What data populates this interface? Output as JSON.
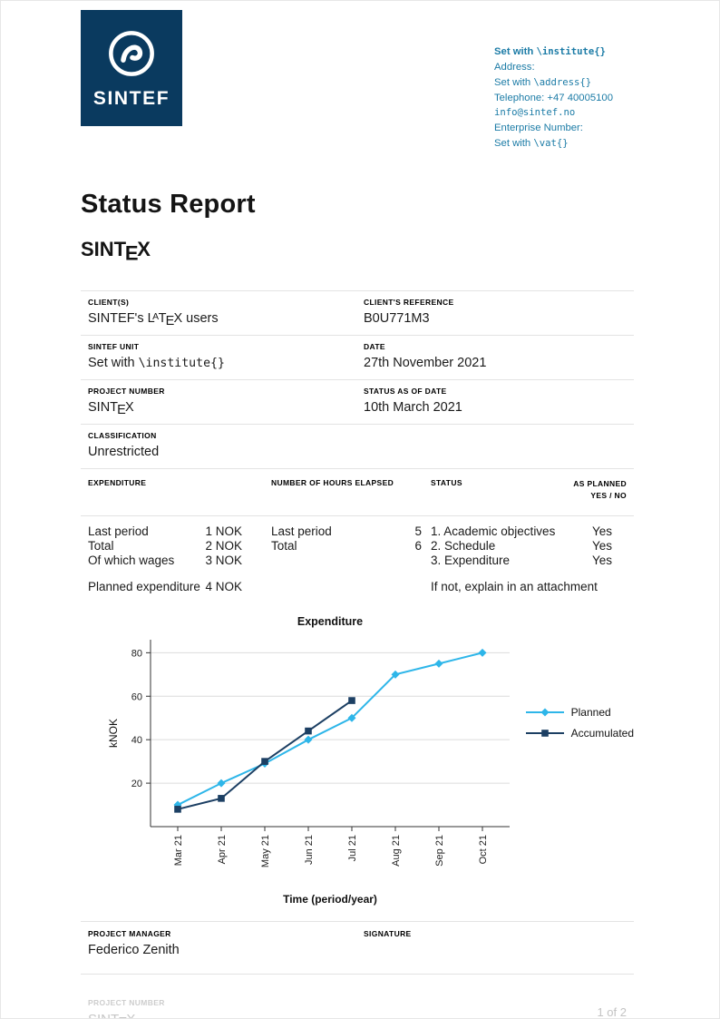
{
  "header": {
    "logo_text": "SINTEF",
    "contact": {
      "institute_prefix": "Set with ",
      "institute_code": "\\institute{}",
      "address_label": "Address:",
      "address_prefix": "Set with ",
      "address_code": "\\address{}",
      "telephone": "Telephone: +47 40005100",
      "email": "info@sintef.no",
      "enterprise_label": "Enterprise Number:",
      "vat_prefix": "Set with ",
      "vat_code": "\\vat{}"
    }
  },
  "title": "Status Report",
  "brand": {
    "pre": "SINT",
    "e": "E",
    "x": "X"
  },
  "latex_client": {
    "pre": "SINTEF's L",
    "a": "A",
    "t": "T",
    "e": "E",
    "x": "X",
    "post": " users"
  },
  "info": {
    "rows": [
      {
        "l_label": "CLIENT(S)",
        "r_label": "CLIENT'S REFERENCE",
        "r_value": "B0U771M3"
      },
      {
        "l_label": "SINTEF UNIT",
        "l_prefix": "Set with ",
        "l_code": "\\institute{}",
        "r_label": "DATE",
        "r_value": "27th November 2021"
      },
      {
        "l_label": "PROJECT NUMBER",
        "r_label": "STATUS AS OF DATE",
        "r_value": "10th March 2021"
      },
      {
        "l_label": "CLASSIFICATION",
        "l_value": "Unrestricted"
      }
    ]
  },
  "expenditure": {
    "headers": {
      "expenditure": "EXPENDITURE",
      "hours": "NUMBER OF HOURS ELAPSED",
      "status": "STATUS",
      "planned1": "AS PLANNED",
      "planned2": "YES / NO"
    },
    "rows": [
      {
        "exp_label": "Last period",
        "exp_value": "1 NOK",
        "hours_label": "Last period",
        "hours_value": "5",
        "status": "1. Academic objectives",
        "planned": "Yes"
      },
      {
        "exp_label": "Total",
        "exp_value": "2 NOK",
        "hours_label": "Total",
        "hours_value": "6",
        "status": "2. Schedule",
        "planned": "Yes"
      },
      {
        "exp_label": "Of which wages",
        "exp_value": "3 NOK",
        "hours_label": "",
        "hours_value": "",
        "status": "3. Expenditure",
        "planned": "Yes"
      },
      {
        "exp_label": "Planned expenditure",
        "exp_value": "4 NOK",
        "hours_label": "",
        "hours_value": "",
        "status": "If not, explain in an attachment",
        "planned": ""
      }
    ]
  },
  "chart_data": {
    "type": "line",
    "title": "Expenditure",
    "xlabel": "Time (period/year)",
    "ylabel": "kNOK",
    "categories": [
      "Mar 21",
      "Apr 21",
      "May 21",
      "Jun 21",
      "Jul 21",
      "Aug 21",
      "Sep 21",
      "Oct 21"
    ],
    "ylim": [
      0,
      86
    ],
    "yticks": [
      20,
      40,
      60,
      80
    ],
    "grid": true,
    "legend_position": "right",
    "series": [
      {
        "name": "Planned",
        "color": "#2eb6e9",
        "marker": "diamond",
        "values": [
          10,
          20,
          29,
          40,
          50,
          70,
          75,
          80
        ]
      },
      {
        "name": "Accumulated",
        "color": "#1c3f63",
        "marker": "square",
        "values": [
          8,
          13,
          30,
          44,
          58,
          null,
          null,
          null
        ]
      }
    ]
  },
  "signoff": {
    "manager_label": "PROJECT MANAGER",
    "manager_name": "Federico Zenith",
    "signature_label": "SIGNATURE"
  },
  "footer": {
    "project_label": "PROJECT NUMBER",
    "page": "1 of 2"
  }
}
